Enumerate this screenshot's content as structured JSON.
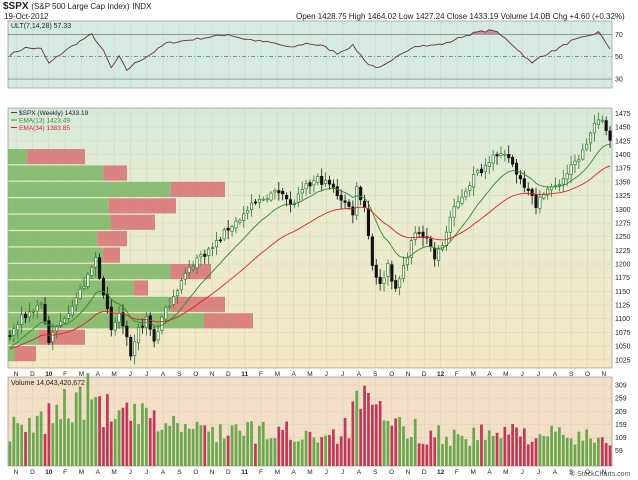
{
  "header": {
    "symbol": "$SPX",
    "name": "(S&P 500 Large Cap Index)",
    "exchange": "INDX",
    "date": "19-Oct-2012",
    "quote": "Open 1428.75  High 1464.02  Low 1427.24  Close 1433.19  Volume 14.0B  Chg +4.60 (+0.32%)",
    "watermark": "© StockCharts.com"
  },
  "colors": {
    "up": "#2a7a2a",
    "down": "#111111",
    "ema13": "#2e8b2e",
    "ema34": "#dd2222",
    "ult_line": "#6b2b3a",
    "ult_fill": "#c58aa6",
    "vol_up": "#6aa84f",
    "vol_down": "#c0395a",
    "vp_up": "#7fb86a",
    "vp_down": "#d87878"
  },
  "ult_panel": {
    "label": "ULT(7,14,28) 57.33",
    "ticks": [
      "70",
      "50",
      "30"
    ]
  },
  "price_panel": {
    "legend": [
      "$SPX (Weekly) 1433.19",
      "EMA(13) 1423.49",
      "EMA(34) 1383.85"
    ],
    "ticks": [
      "1475",
      "1450",
      "1425",
      "1400",
      "1375",
      "1350",
      "1325",
      "1300",
      "1275",
      "1250",
      "1225",
      "1200",
      "1175",
      "1150",
      "1125",
      "1100",
      "1075",
      "1050",
      "1025"
    ]
  },
  "vol_panel": {
    "label": "Volume 14,043,420,672",
    "ticks": [
      "309",
      "259",
      "209",
      "159",
      "109",
      "59"
    ]
  },
  "x_labels": [
    "N",
    "D",
    "10",
    "F",
    "M",
    "A",
    "M",
    "J",
    "J",
    "A",
    "S",
    "O",
    "N",
    "D",
    "11",
    "F",
    "M",
    "A",
    "M",
    "J",
    "J",
    "A",
    "S",
    "O",
    "N",
    "D",
    "12",
    "F",
    "M",
    "A",
    "M",
    "J",
    "J",
    "A",
    "S",
    "O",
    "N"
  ],
  "chart_data": {
    "type": "candlestick",
    "interval": "weekly",
    "start": "2009-11-06",
    "weeks": 155,
    "ylim": [
      1010,
      1485
    ],
    "anchors": [
      [
        0,
        1070
      ],
      [
        3,
        1100
      ],
      [
        8,
        1130
      ],
      [
        10,
        1060
      ],
      [
        14,
        1105
      ],
      [
        18,
        1150
      ],
      [
        20,
        1175
      ],
      [
        22,
        1210
      ],
      [
        24,
        1150
      ],
      [
        26,
        1075
      ],
      [
        28,
        1110
      ],
      [
        30,
        1060
      ],
      [
        31,
        1025
      ],
      [
        33,
        1080
      ],
      [
        35,
        1100
      ],
      [
        37,
        1060
      ],
      [
        39,
        1100
      ],
      [
        42,
        1145
      ],
      [
        45,
        1180
      ],
      [
        48,
        1210
      ],
      [
        52,
        1230
      ],
      [
        56,
        1265
      ],
      [
        60,
        1290
      ],
      [
        62,
        1305
      ],
      [
        66,
        1325
      ],
      [
        70,
        1335
      ],
      [
        72,
        1305
      ],
      [
        76,
        1340
      ],
      [
        79,
        1355
      ],
      [
        82,
        1345
      ],
      [
        85,
        1320
      ],
      [
        88,
        1295
      ],
      [
        89,
        1340
      ],
      [
        91,
        1305
      ],
      [
        93,
        1200
      ],
      [
        95,
        1160
      ],
      [
        97,
        1200
      ],
      [
        99,
        1150
      ],
      [
        101,
        1195
      ],
      [
        103,
        1240
      ],
      [
        105,
        1260
      ],
      [
        107,
        1250
      ],
      [
        109,
        1210
      ],
      [
        111,
        1235
      ],
      [
        113,
        1285
      ],
      [
        116,
        1325
      ],
      [
        119,
        1360
      ],
      [
        122,
        1380
      ],
      [
        124,
        1405
      ],
      [
        125,
        1395
      ],
      [
        128,
        1395
      ],
      [
        131,
        1355
      ],
      [
        134,
        1330
      ],
      [
        135,
        1300
      ],
      [
        137,
        1335
      ],
      [
        140,
        1340
      ],
      [
        144,
        1375
      ],
      [
        147,
        1405
      ],
      [
        150,
        1455
      ],
      [
        152,
        1460
      ],
      [
        154,
        1433
      ]
    ],
    "ultimate_oscillator": {
      "period": "7,14,28",
      "ylim": [
        22,
        82
      ],
      "levels": [
        70,
        50,
        30
      ],
      "last": 57.33,
      "anchors": [
        [
          0,
          52
        ],
        [
          4,
          58
        ],
        [
          8,
          57
        ],
        [
          10,
          44
        ],
        [
          14,
          55
        ],
        [
          18,
          64
        ],
        [
          21,
          70
        ],
        [
          24,
          55
        ],
        [
          26,
          40
        ],
        [
          28,
          50
        ],
        [
          30,
          38
        ],
        [
          32,
          44
        ],
        [
          36,
          52
        ],
        [
          40,
          62
        ],
        [
          44,
          64
        ],
        [
          48,
          66
        ],
        [
          52,
          68
        ],
        [
          56,
          70
        ],
        [
          60,
          66
        ],
        [
          64,
          64
        ],
        [
          68,
          62
        ],
        [
          72,
          58
        ],
        [
          76,
          62
        ],
        [
          80,
          60
        ],
        [
          84,
          53
        ],
        [
          88,
          60
        ],
        [
          92,
          43
        ],
        [
          95,
          40
        ],
        [
          98,
          46
        ],
        [
          101,
          54
        ],
        [
          104,
          60
        ],
        [
          108,
          60
        ],
        [
          112,
          62
        ],
        [
          116,
          68
        ],
        [
          120,
          72
        ],
        [
          124,
          74
        ],
        [
          128,
          64
        ],
        [
          131,
          54
        ],
        [
          134,
          44
        ],
        [
          136,
          50
        ],
        [
          140,
          56
        ],
        [
          144,
          64
        ],
        [
          148,
          68
        ],
        [
          151,
          72
        ],
        [
          154,
          57.33
        ]
      ]
    },
    "volume": {
      "ylim": [
        0,
        340
      ],
      "last": 14043420672,
      "anchors": [
        [
          0,
          170
        ],
        [
          4,
          155
        ],
        [
          8,
          200
        ],
        [
          11,
          230
        ],
        [
          13,
          280
        ],
        [
          15,
          270
        ],
        [
          17,
          290
        ],
        [
          18,
          280
        ],
        [
          20,
          310
        ],
        [
          22,
          290
        ],
        [
          24,
          270
        ],
        [
          26,
          220
        ],
        [
          28,
          200
        ],
        [
          30,
          230
        ],
        [
          34,
          210
        ],
        [
          38,
          200
        ],
        [
          42,
          190
        ],
        [
          46,
          170
        ],
        [
          50,
          155
        ],
        [
          54,
          165
        ],
        [
          58,
          160
        ],
        [
          62,
          150
        ],
        [
          66,
          150
        ],
        [
          70,
          155
        ],
        [
          74,
          140
        ],
        [
          78,
          150
        ],
        [
          82,
          145
        ],
        [
          86,
          160
        ],
        [
          88,
          220
        ],
        [
          90,
          320
        ],
        [
          92,
          250
        ],
        [
          94,
          230
        ],
        [
          98,
          180
        ],
        [
          102,
          165
        ],
        [
          106,
          150
        ],
        [
          110,
          140
        ],
        [
          114,
          130
        ],
        [
          118,
          135
        ],
        [
          122,
          140
        ],
        [
          126,
          140
        ],
        [
          130,
          150
        ],
        [
          134,
          150
        ],
        [
          138,
          140
        ],
        [
          142,
          130
        ],
        [
          146,
          120
        ],
        [
          150,
          130
        ],
        [
          154,
          135
        ]
      ]
    },
    "volume_by_price": {
      "ranges": [
        1035,
        1065,
        1095,
        1125,
        1155,
        1185,
        1215,
        1245,
        1275,
        1305,
        1335,
        1365,
        1395
      ],
      "up_frac": [
        0.25,
        0.4,
        0.8,
        0.75,
        0.9,
        0.8,
        0.85,
        0.75,
        0.7,
        0.6,
        0.75,
        0.8,
        0.25
      ],
      "total": [
        0.2,
        0.55,
        1.75,
        1.55,
        1.0,
        1.45,
        0.8,
        0.85,
        1.05,
        1.2,
        1.55,
        0.85,
        0.55
      ]
    }
  }
}
